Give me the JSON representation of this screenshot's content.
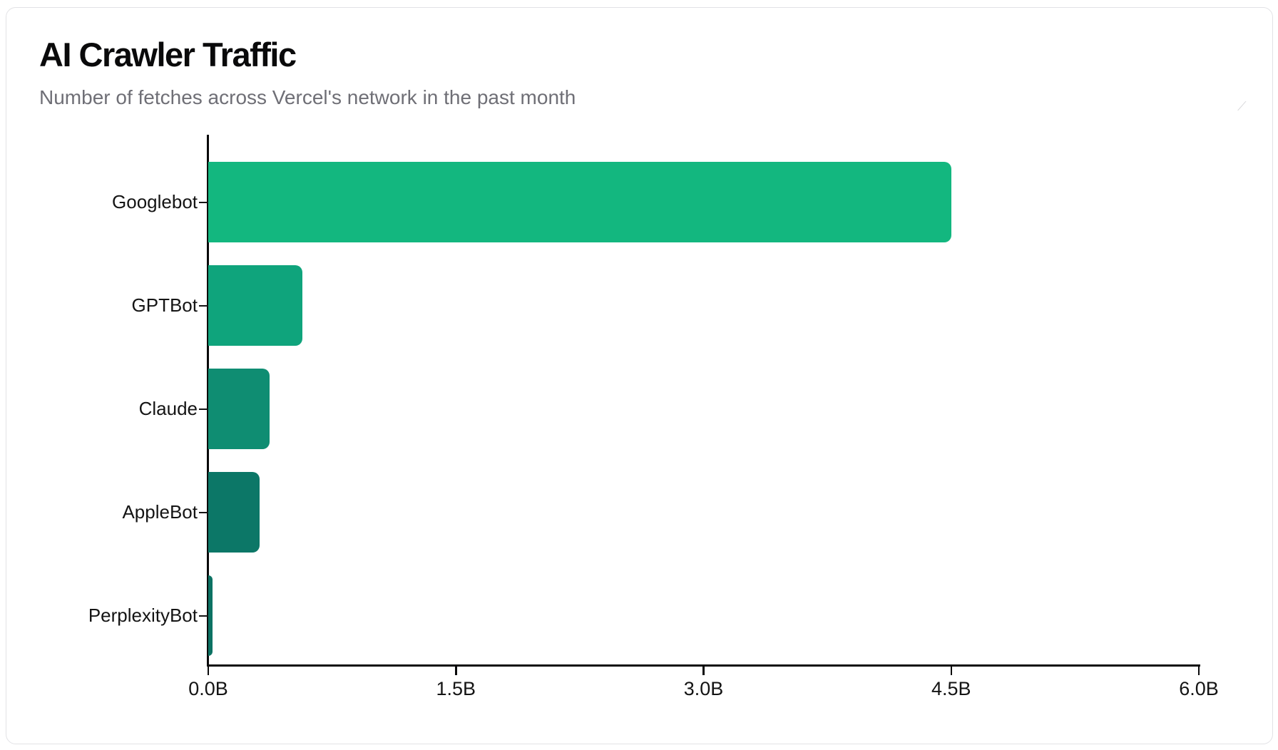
{
  "card": {
    "title": "AI Crawler Traffic",
    "subtitle": "Number of fetches across Vercel's network in the past month"
  },
  "chart_data": {
    "type": "bar",
    "orientation": "horizontal",
    "title": "AI Crawler Traffic",
    "subtitle": "Number of fetches across Vercel's network in the past month",
    "categories": [
      "Googlebot",
      "GPTBot",
      "Claude",
      "AppleBot",
      "PerplexityBot"
    ],
    "values": [
      4.5,
      0.57,
      0.37,
      0.31,
      0.025
    ],
    "value_unit": "billions of fetches",
    "xlabel": "",
    "ylabel": "",
    "xlim": [
      0,
      6
    ],
    "x_ticks": [
      {
        "value": 0,
        "label": "0.0B"
      },
      {
        "value": 1.5,
        "label": "1.5B"
      },
      {
        "value": 3.0,
        "label": "3.0B"
      },
      {
        "value": 4.5,
        "label": "4.5B"
      },
      {
        "value": 6.0,
        "label": "6.0B"
      }
    ],
    "bar_colors": [
      "#13b77f",
      "#0fa47c",
      "#0f8d72",
      "#0c7767",
      "#0c7263"
    ],
    "textured_bar_indices": [
      3,
      4
    ],
    "grid": false,
    "legend": false,
    "axis_color": "#0a0a0b"
  },
  "icons": {
    "resize_mark": "⟋"
  }
}
